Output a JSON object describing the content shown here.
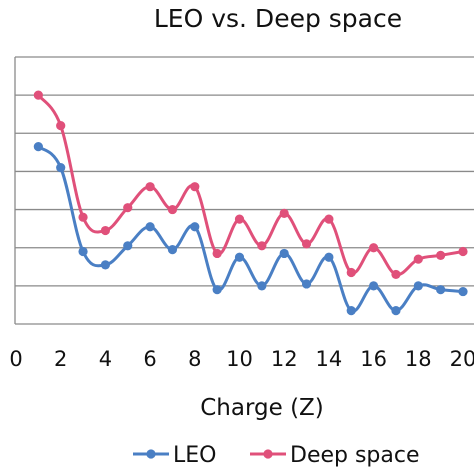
{
  "chart_data": {
    "type": "line",
    "title": "LEO vs. Deep space",
    "xlabel": "Charge (Z)",
    "ylabel": "",
    "x": [
      1,
      2,
      3,
      4,
      5,
      6,
      7,
      8,
      9,
      10,
      11,
      12,
      13,
      14,
      15,
      16,
      17,
      18,
      19,
      20
    ],
    "xticks": [
      0,
      2,
      4,
      6,
      8,
      10,
      12,
      14,
      16,
      18,
      20
    ],
    "xlim": [
      0,
      20
    ],
    "ylim": [
      0,
      7
    ],
    "grid": true,
    "legend_position": "bottom",
    "series": [
      {
        "name": "LEO",
        "color": "#4a7fc4",
        "values": [
          4.65,
          4.1,
          1.9,
          1.55,
          2.05,
          2.55,
          1.95,
          2.55,
          0.9,
          1.75,
          1.0,
          1.85,
          1.05,
          1.75,
          0.35,
          1.0,
          0.35,
          1.0,
          0.9,
          0.85
        ]
      },
      {
        "name": "Deep space",
        "color": "#e0507a",
        "values": [
          6.0,
          5.2,
          2.8,
          2.45,
          3.05,
          3.6,
          3.0,
          3.6,
          1.85,
          2.75,
          2.05,
          2.9,
          2.1,
          2.75,
          1.35,
          2.0,
          1.3,
          1.7,
          1.8,
          1.9
        ]
      }
    ]
  }
}
